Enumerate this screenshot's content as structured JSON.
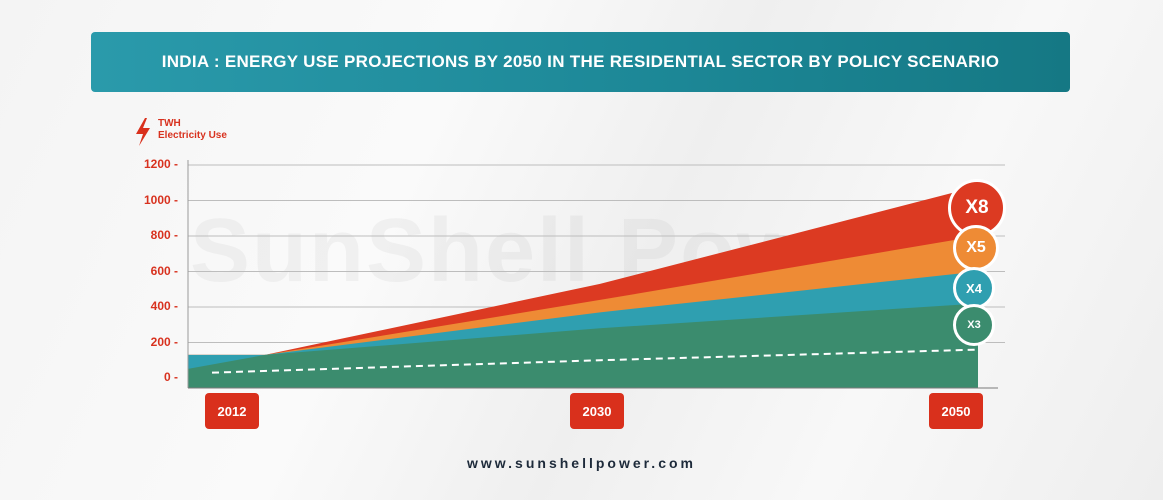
{
  "title": "INDIA : ENERGY USE PROJECTIONS BY 2050 IN THE RESIDENTIAL SECTOR BY POLICY SCENARIO",
  "unit": {
    "line1": "TWH",
    "line2": "Electricity Use",
    "icon": "lightning-bolt-icon"
  },
  "watermark": "SunShell Power",
  "website": "www.sunshellpower.com",
  "colors": {
    "title_bar": "#1c8796",
    "accent_red": "#d9301c",
    "series_x8": "#dc3a22",
    "series_x5": "#ee8b35",
    "series_x4": "#2f9fb0",
    "series_x3": "#3b8c6e",
    "baseline": "#ffffff"
  },
  "chart_data": {
    "type": "area",
    "x": [
      "2012",
      "2030",
      "2050"
    ],
    "ylim": [
      0,
      1200
    ],
    "yticks": [
      "0 -",
      "200 -",
      "400 -",
      "600 -",
      "800 -",
      "1000 -",
      "1200 -"
    ],
    "grid": true,
    "series": [
      {
        "name": "X8",
        "values": [
          130,
          530,
          1080
        ]
      },
      {
        "name": "X5",
        "values": [
          130,
          440,
          800
        ]
      },
      {
        "name": "X4",
        "values": [
          130,
          370,
          600
        ]
      },
      {
        "name": "X3",
        "values": [
          130,
          280,
          420
        ]
      }
    ],
    "baseline_values": [
      30,
      100,
      160
    ]
  }
}
